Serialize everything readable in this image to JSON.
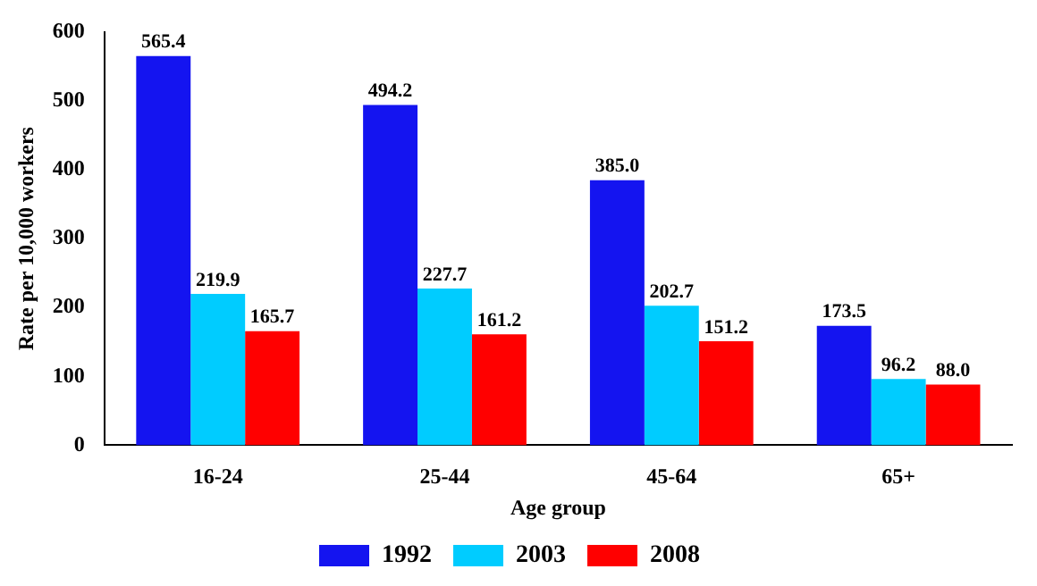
{
  "chart_data": {
    "type": "bar",
    "xlabel": "Age group",
    "ylabel": "Rate per 10,000 workers",
    "categories": [
      "16-24",
      "25-44",
      "45-64",
      "65+"
    ],
    "series": [
      {
        "name": "1992",
        "color": "#1414f0",
        "values": [
          565.4,
          494.2,
          385.0,
          173.5
        ],
        "value_labels": [
          "565.4",
          "494.2",
          "385.0",
          "173.5"
        ]
      },
      {
        "name": "2003",
        "color": "#00ccff",
        "values": [
          219.9,
          227.7,
          202.7,
          96.2
        ],
        "value_labels": [
          "219.9",
          "227.7",
          "202.7",
          "96.2"
        ]
      },
      {
        "name": "2008",
        "color": "#ff0000",
        "values": [
          165.7,
          161.2,
          151.2,
          88.0
        ],
        "value_labels": [
          "165.7",
          "161.2",
          "151.2",
          "88.0"
        ]
      }
    ],
    "ylim": [
      0,
      600
    ],
    "yticks": [
      0,
      100,
      200,
      300,
      400,
      500,
      600
    ],
    "grid": false,
    "legend": "bottom"
  }
}
